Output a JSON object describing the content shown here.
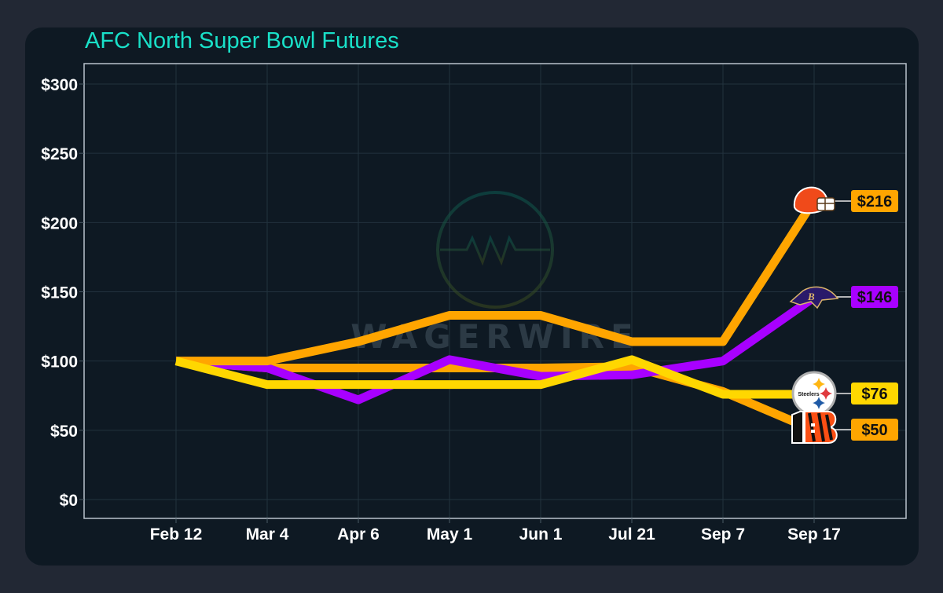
{
  "title": "AFC North Super Bowl Futures",
  "watermark": "WAGERWIRE",
  "colors": {
    "background": "#222834",
    "card": "#0e1923",
    "title": "#19e0c8",
    "browns": "#ffa500",
    "ravens": "#a800ff",
    "steelers": "#ffd700",
    "bengals": "#ffa500"
  },
  "chart_data": {
    "type": "line",
    "title": "AFC North Super Bowl Futures",
    "xlabel": "",
    "ylabel": "",
    "categories": [
      "Feb 12",
      "Mar 4",
      "Apr 6",
      "May 1",
      "Jun 1",
      "Jul 21",
      "Sep 7",
      "Sep 17"
    ],
    "yticks": [
      "$0",
      "$50",
      "$100",
      "$150",
      "$200",
      "$250",
      "$300"
    ],
    "ylim": [
      0,
      300
    ],
    "grid": true,
    "legend": "end-of-line team logos with value labels",
    "series": [
      {
        "name": "Cleveland Browns",
        "color": "#ffa500",
        "values": [
          100,
          100,
          114,
          133,
          133,
          114,
          114,
          216
        ],
        "end_label": "$216",
        "icon": "browns-helmet-icon"
      },
      {
        "name": "Baltimore Ravens",
        "color": "#a800ff",
        "values": [
          100,
          95,
          72,
          101,
          89,
          90,
          100,
          146
        ],
        "end_label": "$146",
        "icon": "ravens-logo-icon"
      },
      {
        "name": "Pittsburgh Steelers",
        "color": "#ffd700",
        "values": [
          100,
          83,
          83,
          83,
          83,
          101,
          76,
          76
        ],
        "end_label": "$76",
        "icon": "steelers-logo-icon"
      },
      {
        "name": "Cincinnati Bengals",
        "color": "#ffa500",
        "values": [
          100,
          95,
          95,
          95,
          95,
          96,
          78,
          50
        ],
        "end_label": "$50",
        "icon": "bengals-logo-icon"
      }
    ]
  }
}
